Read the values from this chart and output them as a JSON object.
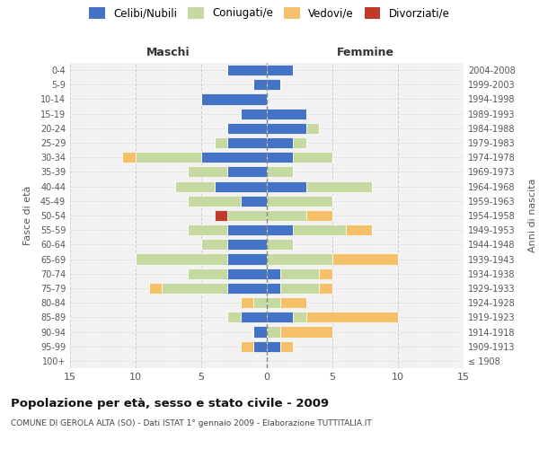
{
  "age_groups": [
    "100+",
    "95-99",
    "90-94",
    "85-89",
    "80-84",
    "75-79",
    "70-74",
    "65-69",
    "60-64",
    "55-59",
    "50-54",
    "45-49",
    "40-44",
    "35-39",
    "30-34",
    "25-29",
    "20-24",
    "15-19",
    "10-14",
    "5-9",
    "0-4"
  ],
  "birth_years": [
    "≤ 1908",
    "1909-1913",
    "1914-1918",
    "1919-1923",
    "1924-1928",
    "1929-1933",
    "1934-1938",
    "1939-1943",
    "1944-1948",
    "1949-1953",
    "1954-1958",
    "1959-1963",
    "1964-1968",
    "1969-1973",
    "1974-1978",
    "1979-1983",
    "1984-1988",
    "1989-1993",
    "1994-1998",
    "1999-2003",
    "2004-2008"
  ],
  "colors": {
    "celibi": "#4472C4",
    "coniugati": "#C5D9A0",
    "vedovi": "#F5C06A",
    "divorziati": "#C0392B",
    "background": "#F2F2F2",
    "grid": "#CCCCCC"
  },
  "maschi": {
    "celibi": [
      0,
      1,
      1,
      2,
      0,
      3,
      3,
      3,
      3,
      3,
      0,
      2,
      4,
      3,
      5,
      3,
      3,
      2,
      5,
      1,
      3
    ],
    "coniugati": [
      0,
      0,
      0,
      1,
      1,
      5,
      3,
      7,
      2,
      3,
      3,
      4,
      3,
      3,
      5,
      1,
      0,
      0,
      0,
      0,
      0
    ],
    "vedovi": [
      0,
      1,
      0,
      0,
      1,
      1,
      0,
      0,
      0,
      0,
      0,
      0,
      0,
      0,
      1,
      0,
      0,
      0,
      0,
      0,
      0
    ],
    "divorziati": [
      0,
      0,
      0,
      0,
      0,
      0,
      0,
      0,
      0,
      0,
      1,
      0,
      0,
      0,
      0,
      0,
      0,
      0,
      0,
      0,
      0
    ]
  },
  "femmine": {
    "celibi": [
      0,
      1,
      0,
      2,
      0,
      1,
      1,
      0,
      0,
      2,
      0,
      0,
      3,
      0,
      2,
      2,
      3,
      3,
      0,
      1,
      2
    ],
    "coniugati": [
      0,
      0,
      1,
      1,
      1,
      3,
      3,
      5,
      2,
      4,
      3,
      5,
      5,
      2,
      3,
      1,
      1,
      0,
      0,
      0,
      0
    ],
    "vedovi": [
      0,
      1,
      4,
      7,
      2,
      1,
      1,
      5,
      0,
      2,
      2,
      0,
      0,
      0,
      0,
      0,
      0,
      0,
      0,
      0,
      0
    ],
    "divorziati": [
      0,
      0,
      0,
      0,
      0,
      0,
      0,
      0,
      0,
      0,
      0,
      0,
      0,
      0,
      0,
      0,
      0,
      0,
      0,
      0,
      0
    ]
  },
  "xlim": 15,
  "title": "Popolazione per età, sesso e stato civile - 2009",
  "subtitle": "COMUNE DI GEROLA ALTA (SO) - Dati ISTAT 1° gennaio 2009 - Elaborazione TUTTITALIA.IT",
  "ylabel_left": "Fasce di età",
  "ylabel_right": "Anni di nascita",
  "xlabel_left": "Maschi",
  "xlabel_right": "Femmine"
}
